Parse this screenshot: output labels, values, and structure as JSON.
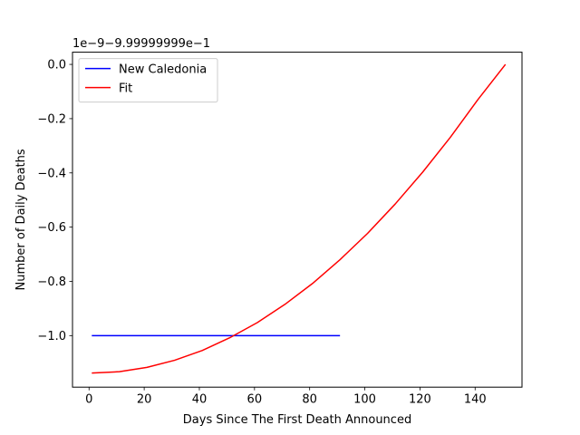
{
  "chart_data": {
    "type": "line",
    "xlabel": "Days Since The First Death Announced",
    "ylabel": "Number of Daily Deaths",
    "offset_text": "1e−9−9.99999999e−1",
    "xlim": [
      -6,
      157
    ],
    "ylim": [
      -1.19,
      0.045
    ],
    "x_ticks": [
      0,
      20,
      40,
      60,
      80,
      100,
      120,
      140
    ],
    "x_tick_labels": [
      "0",
      "20",
      "40",
      "60",
      "80",
      "100",
      "120",
      "140"
    ],
    "y_ticks": [
      0.0,
      -0.2,
      -0.4,
      -0.6,
      -0.8,
      -1.0
    ],
    "y_tick_labels": [
      "0.0",
      "−0.2",
      "−0.4",
      "−0.6",
      "−0.8",
      "−1.0"
    ],
    "grid": false,
    "legend_position": "top-left",
    "series": [
      {
        "name": "New Caledonia",
        "color": "#0000ff",
        "x": [
          1,
          91
        ],
        "y": [
          -1.0,
          -1.0
        ]
      },
      {
        "name": "Fit",
        "color": "#ff0000",
        "x": [
          1,
          11,
          21,
          31,
          41,
          51,
          61,
          71,
          81,
          91,
          101,
          111,
          121,
          131,
          141,
          151
        ],
        "y": [
          -1.138,
          -1.133,
          -1.117,
          -1.091,
          -1.055,
          -1.008,
          -0.952,
          -0.885,
          -0.808,
          -0.72,
          -0.623,
          -0.515,
          -0.397,
          -0.269,
          -0.13,
          0.0
        ]
      }
    ]
  }
}
